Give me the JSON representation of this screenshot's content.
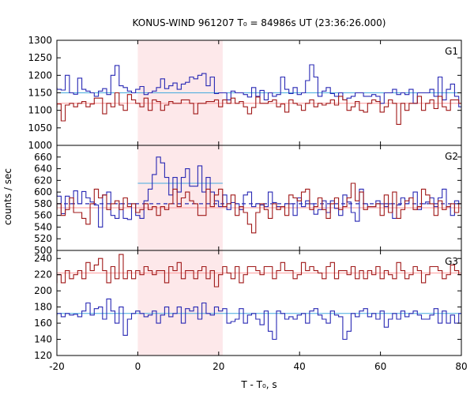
{
  "chart_data": {
    "type": "line",
    "title": "KONUS-WIND 961207 T₀ = 84986s UT (23:36:26.000)",
    "xlabel": "T - T₀, s",
    "ylabel": "counts / sec",
    "xlim": [
      -20,
      80
    ],
    "xticks": [
      -20,
      0,
      20,
      40,
      60,
      80
    ],
    "highlight": {
      "x": [
        0,
        21.0
      ],
      "color": "#fde8ea"
    },
    "colors": {
      "dark_red": "#a01818",
      "blue": "#2828b4",
      "bg_light_red": "#ff9999",
      "bg_light_blue": "#44aadd",
      "highlight": "#fde8ea"
    },
    "panels": [
      {
        "name": "G1",
        "ylim": [
          1000,
          1300
        ],
        "yticks": [
          1000,
          1050,
          1100,
          1150,
          1200,
          1250,
          1300
        ],
        "bin_start": -21.0,
        "bin_width": 1.024,
        "series": [
          {
            "role": "blue",
            "values": [
              1164,
              1160,
              1158,
              1200,
              1150,
              1146,
              1192,
              1160,
              1155,
              1150,
              1140,
              1155,
              1162,
              1145,
              1200,
              1228,
              1170,
              1165,
              1155,
              1150,
              1160,
              1168,
              1145,
              1150,
              1155,
              1165,
              1190,
              1162,
              1170,
              1178,
              1160,
              1175,
              1180,
              1195,
              1190,
              1200,
              1205,
              1170,
              1195,
              1148,
              1150,
              1150,
              1130,
              1155,
              1150,
              1150,
              1145,
              1138,
              1165,
              1140,
              1157,
              1130,
              1150,
              1140,
              1145,
              1195,
              1160,
              1148,
              1165,
              1145,
              1150,
              1185,
              1230,
              1195,
              1140,
              1155,
              1165,
              1148,
              1140,
              1150,
              1130,
              1135,
              1140,
              1150,
              1150,
              1140,
              1140,
              1145,
              1140,
              1120,
              1150,
              1150,
              1160,
              1145,
              1150,
              1145,
              1160,
              1120,
              1150,
              1150,
              1150,
              1160,
              1140,
              1195,
              1130,
              1160,
              1175,
              1140,
              1110,
              1200
            ]
          },
          {
            "role": "dark_red",
            "values": [
              1110,
              1118,
              1070,
              1115,
              1120,
              1110,
              1120,
              1125,
              1110,
              1118,
              1135,
              1135,
              1090,
              1120,
              1110,
              1150,
              1115,
              1100,
              1145,
              1130,
              1120,
              1110,
              1135,
              1100,
              1130,
              1125,
              1100,
              1115,
              1125,
              1120,
              1120,
              1130,
              1130,
              1120,
              1090,
              1120,
              1120,
              1125,
              1125,
              1130,
              1110,
              1130,
              1120,
              1135,
              1120,
              1125,
              1110,
              1090,
              1108,
              1138,
              1120,
              1120,
              1125,
              1130,
              1110,
              1118,
              1095,
              1130,
              1120,
              1115,
              1100,
              1120,
              1130,
              1110,
              1120,
              1115,
              1120,
              1130,
              1115,
              1140,
              1130,
              1100,
              1110,
              1125,
              1100,
              1095,
              1120,
              1130,
              1125,
              1095,
              1110,
              1130,
              1120,
              1060,
              1120,
              1100,
              1120,
              1120,
              1140,
              1100,
              1120,
              1130,
              1105,
              1140,
              1110,
              1100,
              1130,
              1130,
              1120,
              1108
            ]
          }
        ],
        "background": [
          {
            "role": "bg_light_blue",
            "y": [
              1150,
              1150
            ],
            "x": [
              -20,
              80
            ]
          },
          {
            "role": "bg_light_red",
            "y": [
              1120,
              1120
            ],
            "x": [
              -20,
              80
            ]
          }
        ]
      },
      {
        "name": "G2",
        "ylim": [
          500,
          680
        ],
        "yticks": [
          500,
          520,
          540,
          560,
          580,
          600,
          620,
          640,
          660
        ],
        "bin_start": -21.0,
        "bin_width": 1.024,
        "series": [
          {
            "role": "blue",
            "values": [
              600,
              593,
              563,
              593,
              580,
              602,
              580,
              601,
              590,
              583,
              578,
              540,
              595,
              600,
              560,
              555,
              580,
              555,
              553,
              580,
              560,
              555,
              585,
              605,
              630,
              660,
              650,
              625,
              595,
              625,
              600,
              625,
              640,
              610,
              610,
              645,
              600,
              625,
              600,
              585,
              575,
              595,
              570,
              582,
              580,
              570,
              595,
              600,
              575,
              580,
              578,
              575,
              600,
              582,
              575,
              575,
              580,
              580,
              560,
              590,
              575,
              585,
              580,
              562,
              570,
              585,
              565,
              585,
              572,
              560,
              595,
              583,
              565,
              550,
              605,
              580,
              575,
              575,
              585,
              580,
              575,
              580,
              555,
              578,
              590,
              580,
              590,
              600,
              570,
              580,
              583,
              590,
              575,
              590,
              605,
              575,
              560,
              585,
              580,
              575
            ]
          },
          {
            "role": "dark_red",
            "values": [
              570,
              580,
              560,
              570,
              590,
              565,
              565,
              555,
              545,
              580,
              605,
              590,
              595,
              570,
              580,
              585,
              570,
              590,
              575,
              580,
              565,
              570,
              580,
              570,
              575,
              560,
              575,
              570,
              580,
              605,
              575,
              590,
              600,
              585,
              580,
              560,
              560,
              605,
              575,
              595,
              605,
              575,
              580,
              595,
              560,
              575,
              565,
              545,
              530,
              565,
              580,
              570,
              555,
              580,
              570,
              575,
              560,
              595,
              590,
              585,
              600,
              605,
              570,
              575,
              590,
              570,
              555,
              580,
              590,
              570,
              575,
              590,
              615,
              585,
              600,
              570,
              575,
              575,
              580,
              560,
              595,
              565,
              600,
              555,
              570,
              585,
              590,
              570,
              575,
              605,
              595,
              580,
              560,
              585,
              570,
              575,
              580,
              565,
              580,
              570
            ]
          }
        ],
        "background": [
          {
            "role": "blue",
            "y": [
              580,
              580
            ],
            "x": [
              -20,
              80
            ],
            "dashed": true
          },
          {
            "role": "bg_light_blue",
            "y": [
              615,
              615
            ],
            "x": [
              0,
              21
            ]
          },
          {
            "role": "bg_light_red",
            "y": [
              573,
              573
            ],
            "x": [
              -20,
              80
            ]
          }
        ]
      },
      {
        "name": "G3",
        "ylim": [
          120,
          250
        ],
        "yticks": [
          120,
          140,
          160,
          180,
          200,
          220,
          240
        ],
        "bin_start": -21.0,
        "bin_width": 1.024,
        "series": [
          {
            "role": "blue",
            "values": [
              170,
              172,
              168,
              172,
              170,
              171,
              168,
              175,
              185,
              170,
              178,
              180,
              165,
              190,
              175,
              160,
              180,
              145,
              165,
              172,
              175,
              172,
              168,
              170,
              175,
              160,
              170,
              180,
              168,
              172,
              180,
              160,
              178,
              175,
              180,
              165,
              185,
              172,
              170,
              180,
              175,
              178,
              160,
              162,
              165,
              178,
              160,
              170,
              172,
              165,
              158,
              175,
              150,
              140,
              175,
              172,
              165,
              168,
              165,
              170,
              172,
              160,
              175,
              178,
              170,
              165,
              160,
              175,
              170,
              168,
              140,
              150,
              172,
              168,
              175,
              178,
              168,
              172,
              165,
              175,
              155,
              165,
              172,
              165,
              175,
              168,
              172,
              175,
              170,
              165,
              165,
              170,
              178,
              160,
              175,
              160,
              170,
              160,
              172,
              180
            ]
          },
          {
            "role": "dark_red",
            "values": [
              210,
              220,
              210,
              225,
              215,
              220,
              225,
              215,
              235,
              225,
              232,
              240,
              225,
              210,
              230,
              215,
              245,
              215,
              225,
              215,
              225,
              220,
              230,
              225,
              220,
              225,
              225,
              210,
              230,
              225,
              235,
              215,
              225,
              225,
              215,
              225,
              230,
              215,
              225,
              205,
              220,
              230,
              222,
              215,
              230,
              210,
              220,
              230,
              230,
              225,
              220,
              230,
              230,
              215,
              225,
              235,
              225,
              225,
              215,
              220,
              235,
              225,
              230,
              225,
              222,
              215,
              230,
              235,
              215,
              225,
              225,
              220,
              230,
              215,
              225,
              215,
              225,
              220,
              230,
              215,
              225,
              220,
              215,
              235,
              225,
              215,
              220,
              230,
              225,
              210,
              220,
              230,
              230,
              225,
              215,
              220,
              232,
              225,
              220,
              225
            ]
          }
        ],
        "background": [
          {
            "role": "bg_light_red",
            "y": [
              222,
              222
            ],
            "x": [
              -20,
              80
            ]
          },
          {
            "role": "bg_light_blue",
            "y": [
              172,
              172
            ],
            "x": [
              -20,
              80
            ]
          }
        ]
      }
    ]
  }
}
